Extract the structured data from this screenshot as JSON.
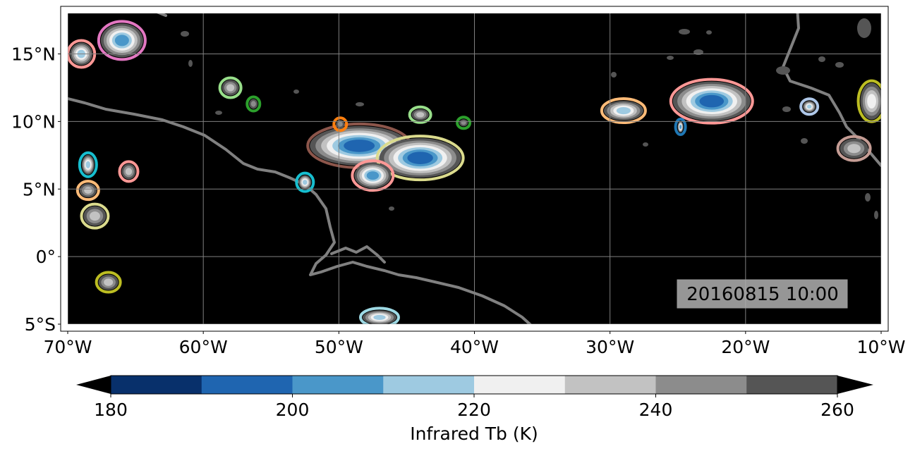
{
  "map": {
    "lon_range": [
      -70,
      -10
    ],
    "lat_range": [
      -5,
      18
    ],
    "lon_ticks": [
      {
        "value": -70,
        "label": "70°W"
      },
      {
        "value": -60,
        "label": "60°W"
      },
      {
        "value": -50,
        "label": "50°W"
      },
      {
        "value": -40,
        "label": "40°W"
      },
      {
        "value": -30,
        "label": "30°W"
      },
      {
        "value": -20,
        "label": "20°W"
      },
      {
        "value": -10,
        "label": "10°W"
      }
    ],
    "lat_ticks": [
      {
        "value": 15,
        "label": "15°N"
      },
      {
        "value": 10,
        "label": "10°N"
      },
      {
        "value": 5,
        "label": "5°N"
      },
      {
        "value": 0,
        "label": "0°"
      },
      {
        "value": -5,
        "label": "5°S"
      }
    ],
    "gridlines": true,
    "background_color": "#000000",
    "coastline_color": "#808080",
    "gridline_color": "#808080"
  },
  "timestamp": "20160815 10:00",
  "colorbar": {
    "label": "Infrared Tb (K)",
    "min": 180,
    "max": 260,
    "extend": "both",
    "tick_values": [
      180,
      200,
      220,
      240,
      260
    ],
    "tick_labels": [
      "180",
      "200",
      "220",
      "240",
      "260"
    ],
    "bins": [
      {
        "from": 180,
        "to": 190,
        "color": "#08306b"
      },
      {
        "from": 190,
        "to": 200,
        "color": "#1f65b0"
      },
      {
        "from": 200,
        "to": 210,
        "color": "#4a97c9"
      },
      {
        "from": 210,
        "to": 220,
        "color": "#9ecae1"
      },
      {
        "from": 220,
        "to": 230,
        "color": "#f0f0f0"
      },
      {
        "from": 230,
        "to": 240,
        "color": "#c2c2c2"
      },
      {
        "from": 240,
        "to": 250,
        "color": "#8c8c8c"
      },
      {
        "from": 250,
        "to": 260,
        "color": "#555555"
      }
    ],
    "under_color": "#000000",
    "over_color": "#000000"
  },
  "cloud_systems": [
    {
      "lon": -48.5,
      "lat": 8.2,
      "core_k": 195,
      "outline": "#8c564b"
    },
    {
      "lon": -44.0,
      "lat": 7.3,
      "core_k": 200,
      "outline": "#dbdb8d"
    },
    {
      "lon": -47.5,
      "lat": 6.0,
      "core_k": 205,
      "outline": "#ff9896"
    },
    {
      "lon": -22.5,
      "lat": 11.5,
      "core_k": 195,
      "outline": "#ff9896"
    },
    {
      "lon": -29.0,
      "lat": 10.8,
      "core_k": 220,
      "outline": "#ffbb78"
    },
    {
      "lon": -66.0,
      "lat": 16.0,
      "core_k": 210,
      "outline": "#e377c2"
    },
    {
      "lon": -69.0,
      "lat": 15.0,
      "core_k": 215,
      "outline": "#ff9896"
    },
    {
      "lon": -10.7,
      "lat": 11.5,
      "core_k": 230,
      "outline": "#bcbd22"
    },
    {
      "lon": -68.0,
      "lat": 3.0,
      "core_k": 235,
      "outline": "#dbdb8d"
    },
    {
      "lon": -67.0,
      "lat": -1.9,
      "core_k": 235,
      "outline": "#bcbd22"
    },
    {
      "lon": -47.0,
      "lat": -4.5,
      "core_k": 215,
      "outline": "#9edae5"
    },
    {
      "lon": -68.5,
      "lat": 6.8,
      "core_k": 215,
      "outline": "#17becf"
    },
    {
      "lon": -68.5,
      "lat": 4.9,
      "core_k": 235,
      "outline": "#ffbb78"
    },
    {
      "lon": -65.5,
      "lat": 6.3,
      "core_k": 240,
      "outline": "#ff9896"
    },
    {
      "lon": -58.0,
      "lat": 12.5,
      "core_k": 240,
      "outline": "#98df8a"
    },
    {
      "lon": -56.3,
      "lat": 11.3,
      "core_k": 250,
      "outline": "#2ca02c"
    },
    {
      "lon": -52.5,
      "lat": 5.5,
      "core_k": 215,
      "outline": "#17becf"
    },
    {
      "lon": -49.9,
      "lat": 9.8,
      "core_k": 250,
      "outline": "#ff7f0e"
    },
    {
      "lon": -40.8,
      "lat": 9.9,
      "core_k": 250,
      "outline": "#2ca02c"
    },
    {
      "lon": -44.0,
      "lat": 10.5,
      "core_k": 240,
      "outline": "#98df8a"
    },
    {
      "lon": -15.3,
      "lat": 11.1,
      "core_k": 220,
      "outline": "#aec7e8"
    },
    {
      "lon": -12.0,
      "lat": 8.0,
      "core_k": 240,
      "outline": "#c49c94"
    },
    {
      "lon": -24.8,
      "lat": 9.6,
      "core_k": 205,
      "outline": "#1f77b4"
    }
  ]
}
